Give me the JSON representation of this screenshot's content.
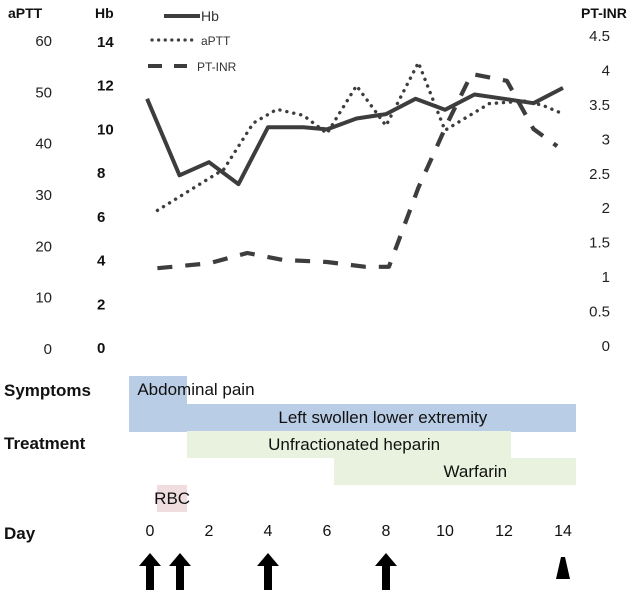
{
  "chart_data": {
    "type": "line",
    "title": "",
    "xlabel": "Day",
    "x": [
      0,
      1,
      2,
      3,
      4,
      5,
      6,
      7,
      8,
      9,
      10,
      11,
      12,
      13,
      14
    ],
    "x_tick_labels": [
      "0",
      "2",
      "4",
      "6",
      "8",
      "10",
      "12",
      "14"
    ],
    "x_ticks": [
      0,
      2,
      4,
      6,
      8,
      10,
      12,
      14
    ],
    "xlim": [
      -0.1,
      14.2
    ],
    "axes": {
      "aptt": {
        "title": "aPTT",
        "ticks": [
          0,
          10,
          20,
          30,
          40,
          50,
          60
        ],
        "ylim": [
          0,
          60
        ],
        "side": "left-outer"
      },
      "hb": {
        "title": "Hb",
        "ticks": [
          0,
          2,
          4,
          6,
          8,
          10,
          12,
          14
        ],
        "ylim": [
          0,
          14
        ],
        "side": "left-inner"
      },
      "inr": {
        "title": "PT-INR",
        "ticks": [
          "0",
          "0.5",
          "1",
          "1.5",
          "2",
          "2.5",
          "3",
          "3.5",
          "4",
          "4.5"
        ],
        "ylim": [
          0,
          4.5
        ],
        "side": "right"
      }
    },
    "grid": false,
    "legend_position": "top-left",
    "series": [
      {
        "name": "Hb",
        "axis": "hb",
        "style": "solid",
        "points": [
          [
            -0.1,
            11.4
          ],
          [
            1,
            7.9
          ],
          [
            2,
            8.5
          ],
          [
            3,
            7.5
          ],
          [
            4,
            10.1
          ],
          [
            5.2,
            10.1
          ],
          [
            6,
            10.0
          ],
          [
            7,
            10.5
          ],
          [
            8,
            10.7
          ],
          [
            9,
            11.4
          ],
          [
            10,
            10.9
          ],
          [
            11,
            11.6
          ],
          [
            12,
            11.4
          ],
          [
            13,
            11.2
          ],
          [
            14,
            11.9
          ]
        ]
      },
      {
        "name": "aPTT",
        "axis": "aptt",
        "style": "dotted",
        "points": [
          [
            0.25,
            27
          ],
          [
            2.5,
            35
          ],
          [
            3.5,
            44
          ],
          [
            4.3,
            46.7
          ],
          [
            5.2,
            45.5
          ],
          [
            6,
            42
          ],
          [
            7,
            51.3
          ],
          [
            8,
            43.5
          ],
          [
            9.1,
            55.8
          ],
          [
            10,
            42.6
          ],
          [
            11.5,
            47.8
          ],
          [
            12.7,
            48.3
          ],
          [
            13.3,
            47.5
          ],
          [
            14,
            45.8
          ]
        ]
      },
      {
        "name": "PT-INR",
        "axis": "inr",
        "style": "dashed",
        "points": [
          [
            0.25,
            1.13
          ],
          [
            2,
            1.2
          ],
          [
            3.3,
            1.35
          ],
          [
            4.5,
            1.25
          ],
          [
            6,
            1.22
          ],
          [
            7.3,
            1.15
          ],
          [
            8.1,
            1.15
          ],
          [
            9.1,
            2.3
          ],
          [
            10.1,
            3.25
          ],
          [
            10.9,
            3.95
          ],
          [
            12.1,
            3.85
          ],
          [
            13,
            3.15
          ],
          [
            13.8,
            2.9
          ]
        ]
      }
    ]
  },
  "legend": [
    {
      "label": "Hb",
      "style": "solid"
    },
    {
      "label": "aPTT",
      "style": "dotted"
    },
    {
      "label": "PT-INR",
      "style": "dashed"
    }
  ],
  "timeline": {
    "symptoms_label": "Symptoms",
    "treatment_label": "Treatment",
    "day_label": "Day",
    "bars": [
      {
        "name": "abdominal-pain",
        "label": "Abdominal pain",
        "start_day": -0.7,
        "end_day": 1.25,
        "color": "#b9cde6",
        "row": "symptoms"
      },
      {
        "name": "left-swollen-lower-extremity",
        "label": "Left swollen lower extremity",
        "start_day": -0.7,
        "end_day": 14.45,
        "color": "#b9cde6",
        "row": "symptoms"
      },
      {
        "name": "unfractionated-heparin",
        "label": "Unfractionated heparin",
        "start_day": 1.25,
        "end_day": 12.25,
        "color": "#e8f2de",
        "row": "treatment"
      },
      {
        "name": "warfarin",
        "label": "Warfarin",
        "start_day": 6.25,
        "end_day": 14.45,
        "color": "#e8f2de",
        "row": "treatment"
      },
      {
        "name": "rbc",
        "label": "RBC",
        "start_day": 0.25,
        "end_day": 1.25,
        "color": "#f0dde0",
        "row": "rbc"
      }
    ],
    "markers": [
      {
        "day": 0,
        "type": "arrow"
      },
      {
        "day": 1,
        "type": "arrow"
      },
      {
        "day": 4,
        "type": "arrow"
      },
      {
        "day": 8,
        "type": "arrow"
      },
      {
        "day": 14,
        "type": "arrowhead"
      }
    ]
  },
  "colors": {
    "line": "#3d3d3d",
    "symptom_bar": "#b9cde6",
    "treatment_bar": "#e8f2de",
    "rbc_bar": "#f0dde0",
    "marker": "#000000"
  }
}
